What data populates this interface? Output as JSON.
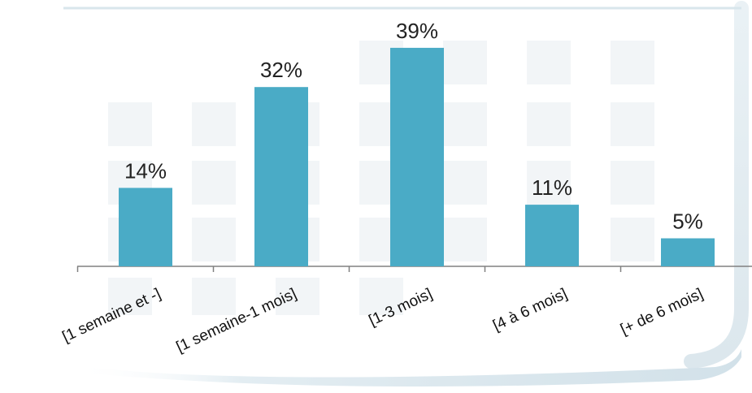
{
  "chart_data": {
    "type": "bar",
    "categories": [
      "[1 semaine et -]",
      "[1 semaine-1 mois]",
      "[1-3 mois]",
      "[4 à 6 mois]",
      "[+ de 6 mois]"
    ],
    "values": [
      14,
      32,
      39,
      11,
      5
    ],
    "value_labels": [
      "14%",
      "32%",
      "39%",
      "11%",
      "5%"
    ],
    "unit": "%",
    "ylim": [
      0,
      40
    ],
    "grid": false,
    "legend": "none",
    "colors": {
      "bar": "#4aabc6",
      "frame": "#d6e3ea",
      "decor": "#f2f5f7",
      "axis": "#808080"
    }
  }
}
